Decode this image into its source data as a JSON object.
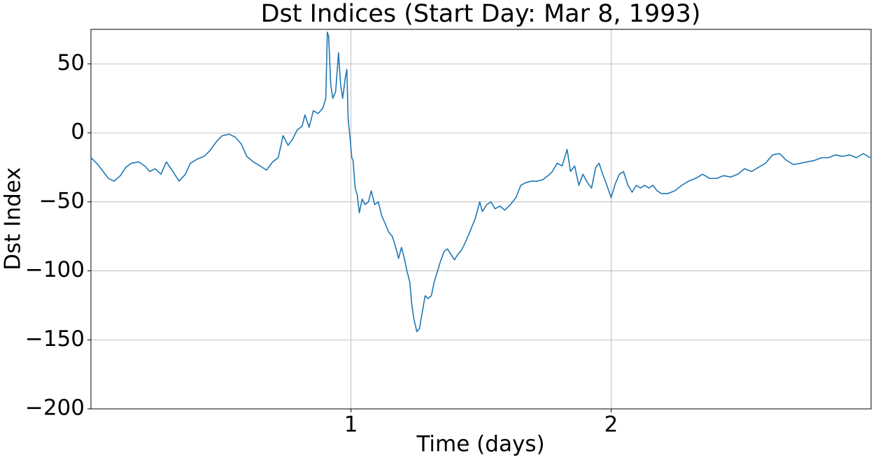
{
  "chart_data": {
    "type": "line",
    "title": "Dst Indices (Start Day: Mar 8, 1993)",
    "x_label": "Time (days)",
    "y_label": "Dst Index",
    "color": "#1f77b4",
    "grid": true,
    "xlim": [
      0,
      3
    ],
    "ylim": [
      -200,
      75
    ],
    "xticks": [
      1,
      2
    ],
    "yticks": [
      {
        "value": -200,
        "label": "−200"
      },
      {
        "value": -150,
        "label": "−150"
      },
      {
        "value": -100,
        "label": "−100"
      },
      {
        "value": -50,
        "label": "−50"
      },
      0,
      50
    ],
    "x": [
      0,
      0.022,
      0.043,
      0.067,
      0.089,
      0.113,
      0.134,
      0.156,
      0.183,
      0.207,
      0.226,
      0.247,
      0.269,
      0.29,
      0.315,
      0.339,
      0.363,
      0.382,
      0.409,
      0.435,
      0.457,
      0.484,
      0.505,
      0.532,
      0.554,
      0.578,
      0.599,
      0.624,
      0.651,
      0.675,
      0.699,
      0.72,
      0.739,
      0.758,
      0.774,
      0.793,
      0.812,
      0.823,
      0.839,
      0.855,
      0.874,
      0.892,
      0.903,
      0.909,
      0.914,
      0.922,
      0.93,
      0.941,
      0.952,
      0.96,
      0.968,
      0.978,
      0.984,
      0.989,
      0.997,
      1.003,
      1.008,
      1.016,
      1.024,
      1.032,
      1.043,
      1.054,
      1.067,
      1.078,
      1.091,
      1.105,
      1.118,
      1.132,
      1.145,
      1.159,
      1.172,
      1.183,
      1.194,
      1.204,
      1.215,
      1.226,
      1.234,
      1.242,
      1.253,
      1.263,
      1.274,
      1.285,
      1.296,
      1.309,
      1.32,
      1.333,
      1.344,
      1.358,
      1.371,
      1.384,
      1.398,
      1.411,
      1.425,
      1.438,
      1.452,
      1.465,
      1.478,
      1.495,
      1.505,
      1.522,
      1.538,
      1.554,
      1.573,
      1.591,
      1.613,
      1.634,
      1.653,
      1.672,
      1.694,
      1.715,
      1.737,
      1.758,
      1.774,
      1.793,
      1.812,
      1.831,
      1.844,
      1.86,
      1.876,
      1.892,
      1.909,
      1.925,
      1.941,
      1.954,
      1.968,
      1.984,
      2.0,
      2.016,
      2.032,
      2.048,
      2.065,
      2.081,
      2.097,
      2.113,
      2.129,
      2.145,
      2.161,
      2.177,
      2.194,
      2.218,
      2.245,
      2.272,
      2.298,
      2.325,
      2.352,
      2.379,
      2.406,
      2.433,
      2.46,
      2.487,
      2.513,
      2.54,
      2.567,
      2.594,
      2.621,
      2.648,
      2.675,
      2.702,
      2.728,
      2.755,
      2.782,
      2.809,
      2.836,
      2.863,
      2.89,
      2.917,
      2.944,
      2.97,
      2.997
    ],
    "values": [
      -18,
      -22,
      -27,
      -33,
      -35,
      -31,
      -25,
      -22,
      -21,
      -24,
      -28,
      -26,
      -30,
      -21,
      -28,
      -35,
      -30,
      -22,
      -19,
      -17,
      -13,
      -6,
      -2,
      -1,
      -3,
      -8,
      -17,
      -21,
      -24,
      -27,
      -21,
      -18,
      -2,
      -9,
      -5,
      2,
      5,
      13,
      4,
      16,
      14,
      18,
      25,
      73,
      70,
      35,
      25,
      30,
      58,
      35,
      25,
      40,
      46,
      10,
      -5,
      -18,
      -20,
      -40,
      -45,
      -58,
      -48,
      -52,
      -50,
      -42,
      -52,
      -50,
      -60,
      -66,
      -72,
      -75,
      -83,
      -91,
      -83,
      -90,
      -100,
      -108,
      -125,
      -135,
      -144,
      -142,
      -130,
      -118,
      -120,
      -118,
      -108,
      -100,
      -93,
      -86,
      -84,
      -88,
      -92,
      -88,
      -85,
      -80,
      -74,
      -68,
      -62,
      -50,
      -57,
      -52,
      -50,
      -55,
      -53,
      -56,
      -52,
      -47,
      -38,
      -36,
      -35,
      -35,
      -34,
      -31,
      -28,
      -22,
      -24,
      -12,
      -28,
      -24,
      -38,
      -30,
      -36,
      -40,
      -25,
      -22,
      -30,
      -38,
      -47,
      -37,
      -30,
      -28,
      -38,
      -43,
      -38,
      -40,
      -38,
      -40,
      -38,
      -42,
      -44,
      -44,
      -42,
      -38,
      -35,
      -33,
      -30,
      -33,
      -33,
      -31,
      -32,
      -30,
      -26,
      -28,
      -25,
      -22,
      -16,
      -15,
      -20,
      -23,
      -22,
      -21,
      -20,
      -18,
      -18,
      -16,
      -17,
      -16,
      -18,
      -15,
      -18
    ]
  }
}
